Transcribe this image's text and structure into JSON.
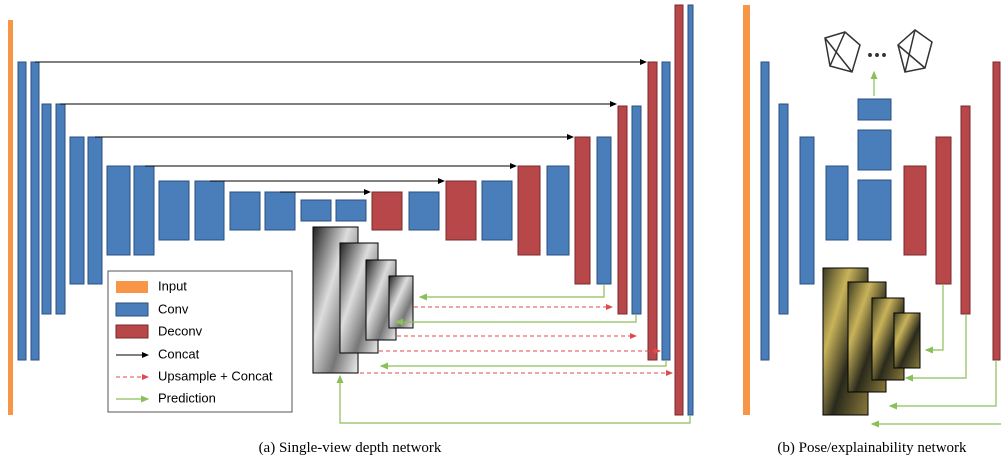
{
  "legend": {
    "items": [
      "Input",
      "Conv",
      "Deconv",
      "Concat",
      "Upsample + Concat",
      "Prediction"
    ]
  },
  "captions": [
    "(a) Single-view depth network",
    "(b) Pose/explainability network"
  ]
}
